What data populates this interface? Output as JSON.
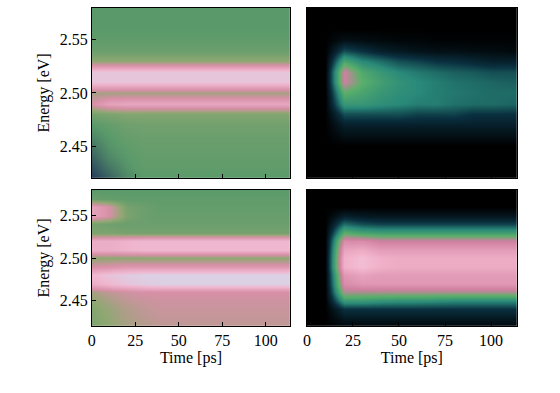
{
  "chart_data": [
    {
      "type": "heatmap",
      "ylabel": "Energy [eV]",
      "tick_labels": "y",
      "grid": false,
      "xlim": [
        0,
        114
      ],
      "ylim": [
        2.42,
        2.58
      ],
      "xticks": [
        0,
        25,
        50,
        75,
        100
      ],
      "yticks": [
        2.45,
        {
          "value": 2.5,
          "label": "2.50"
        },
        2.55
      ],
      "zlim": [
        0,
        1
      ],
      "x": [
        0,
        10,
        20,
        30,
        40,
        50,
        60,
        70,
        80,
        90,
        100,
        110
      ],
      "y": [
        2.42,
        2.43,
        2.44,
        2.45,
        2.46,
        2.47,
        2.48,
        2.49,
        2.5,
        2.51,
        2.52,
        2.53,
        2.54,
        2.55,
        2.56,
        2.57,
        2.58
      ],
      "z": [
        [
          0.05,
          0.15,
          0.25,
          0.3,
          0.3,
          0.3,
          0.3,
          0.3,
          0.3,
          0.3,
          0.3,
          0.3
        ],
        [
          0.1,
          0.2,
          0.28,
          0.32,
          0.32,
          0.32,
          0.32,
          0.32,
          0.32,
          0.32,
          0.32,
          0.32
        ],
        [
          0.15,
          0.25,
          0.3,
          0.33,
          0.33,
          0.33,
          0.33,
          0.33,
          0.33,
          0.33,
          0.33,
          0.33
        ],
        [
          0.2,
          0.28,
          0.32,
          0.34,
          0.34,
          0.34,
          0.34,
          0.34,
          0.34,
          0.34,
          0.34,
          0.34
        ],
        [
          0.25,
          0.3,
          0.34,
          0.35,
          0.35,
          0.35,
          0.35,
          0.35,
          0.35,
          0.35,
          0.35,
          0.35
        ],
        [
          0.3,
          0.33,
          0.36,
          0.37,
          0.37,
          0.37,
          0.37,
          0.37,
          0.37,
          0.37,
          0.37,
          0.37
        ],
        [
          0.38,
          0.4,
          0.42,
          0.42,
          0.42,
          0.42,
          0.42,
          0.42,
          0.42,
          0.42,
          0.42,
          0.42
        ],
        [
          0.6,
          0.7,
          0.72,
          0.72,
          0.72,
          0.72,
          0.72,
          0.72,
          0.72,
          0.72,
          0.72,
          0.72
        ],
        [
          0.5,
          0.5,
          0.5,
          0.5,
          0.5,
          0.5,
          0.5,
          0.5,
          0.5,
          0.5,
          0.5,
          0.5
        ],
        [
          0.85,
          0.85,
          0.85,
          0.85,
          0.85,
          0.85,
          0.85,
          0.85,
          0.85,
          0.85,
          0.85,
          0.85
        ],
        [
          0.85,
          0.85,
          0.85,
          0.85,
          0.85,
          0.85,
          0.85,
          0.85,
          0.85,
          0.85,
          0.85,
          0.85
        ],
        [
          0.45,
          0.45,
          0.45,
          0.45,
          0.45,
          0.45,
          0.45,
          0.45,
          0.45,
          0.45,
          0.45,
          0.45
        ],
        [
          0.35,
          0.35,
          0.35,
          0.35,
          0.35,
          0.35,
          0.35,
          0.35,
          0.35,
          0.35,
          0.35,
          0.35
        ],
        [
          0.32,
          0.32,
          0.32,
          0.32,
          0.32,
          0.32,
          0.32,
          0.32,
          0.32,
          0.32,
          0.32,
          0.32
        ],
        [
          0.3,
          0.3,
          0.3,
          0.3,
          0.3,
          0.3,
          0.3,
          0.3,
          0.3,
          0.3,
          0.3,
          0.3
        ],
        [
          0.3,
          0.3,
          0.3,
          0.3,
          0.3,
          0.3,
          0.3,
          0.3,
          0.3,
          0.3,
          0.3,
          0.3
        ],
        [
          0.3,
          0.3,
          0.3,
          0.3,
          0.3,
          0.3,
          0.3,
          0.3,
          0.3,
          0.3,
          0.3,
          0.3
        ]
      ]
    },
    {
      "type": "heatmap",
      "tick_labels": false,
      "grid": false,
      "xlim": [
        0,
        114
      ],
      "ylim": [
        2.42,
        2.58
      ],
      "xticks": [
        0,
        25,
        50,
        75,
        100
      ],
      "yticks": [
        2.45,
        {
          "value": 2.5,
          "label": "2.50"
        },
        2.55
      ],
      "zlim": [
        0,
        1
      ],
      "x": [
        0,
        10,
        20,
        30,
        40,
        50,
        60,
        70,
        80,
        90,
        100,
        110
      ],
      "y": [
        2.42,
        2.43,
        2.44,
        2.45,
        2.46,
        2.47,
        2.48,
        2.49,
        2.5,
        2.51,
        2.52,
        2.53,
        2.54,
        2.55,
        2.56,
        2.57,
        2.58
      ],
      "z": [
        [
          0,
          0,
          0,
          0,
          0,
          0,
          0,
          0,
          0,
          0,
          0,
          0
        ],
        [
          0,
          0,
          0,
          0,
          0,
          0,
          0,
          0,
          0,
          0,
          0,
          0
        ],
        [
          0,
          0,
          0,
          0,
          0,
          0,
          0,
          0,
          0,
          0,
          0,
          0
        ],
        [
          0,
          0,
          0,
          0,
          0,
          0,
          0,
          0,
          0,
          0,
          0,
          0
        ],
        [
          0,
          0,
          0.05,
          0.05,
          0.05,
          0.05,
          0.05,
          0.05,
          0.05,
          0.05,
          0.05,
          0.05
        ],
        [
          0,
          0,
          0.1,
          0.1,
          0.1,
          0.1,
          0.1,
          0.1,
          0.1,
          0.1,
          0.1,
          0.1
        ],
        [
          0,
          0,
          0.2,
          0.2,
          0.2,
          0.2,
          0.18,
          0.18,
          0.18,
          0.15,
          0.15,
          0.15
        ],
        [
          0,
          0,
          0.35,
          0.35,
          0.32,
          0.3,
          0.28,
          0.28,
          0.26,
          0.25,
          0.25,
          0.24
        ],
        [
          0,
          0,
          0.45,
          0.4,
          0.35,
          0.32,
          0.3,
          0.28,
          0.27,
          0.26,
          0.25,
          0.25
        ],
        [
          0,
          0,
          0.6,
          0.45,
          0.38,
          0.33,
          0.3,
          0.28,
          0.26,
          0.25,
          0.24,
          0.23
        ],
        [
          0,
          0,
          0.6,
          0.42,
          0.35,
          0.3,
          0.27,
          0.25,
          0.23,
          0.22,
          0.2,
          0.2
        ],
        [
          0,
          0,
          0.4,
          0.3,
          0.25,
          0.2,
          0.18,
          0.15,
          0.14,
          0.12,
          0.1,
          0.1
        ],
        [
          0,
          0,
          0.2,
          0.15,
          0.1,
          0.08,
          0.06,
          0.05,
          0.05,
          0.04,
          0.04,
          0.03
        ],
        [
          0,
          0,
          0.05,
          0.04,
          0.03,
          0.02,
          0.02,
          0.01,
          0.01,
          0.01,
          0.01,
          0.01
        ],
        [
          0,
          0,
          0,
          0,
          0,
          0,
          0,
          0,
          0,
          0,
          0,
          0
        ],
        [
          0,
          0,
          0,
          0,
          0,
          0,
          0,
          0,
          0,
          0,
          0,
          0
        ],
        [
          0,
          0,
          0,
          0,
          0,
          0,
          0,
          0,
          0,
          0,
          0,
          0
        ]
      ]
    },
    {
      "type": "heatmap",
      "xlabel": "Time [ps]",
      "ylabel": "Energy [eV]",
      "tick_labels": true,
      "grid": false,
      "xlim": [
        0,
        114
      ],
      "ylim": [
        2.42,
        2.58
      ],
      "xticks": [
        0,
        25,
        50,
        75,
        100
      ],
      "yticks": [
        2.45,
        {
          "value": 2.5,
          "label": "2.50"
        },
        2.55
      ],
      "zlim": [
        0,
        1
      ],
      "x": [
        0,
        10,
        20,
        30,
        40,
        50,
        60,
        70,
        80,
        90,
        100,
        110
      ],
      "y": [
        2.42,
        2.43,
        2.44,
        2.45,
        2.46,
        2.47,
        2.48,
        2.49,
        2.5,
        2.51,
        2.52,
        2.53,
        2.54,
        2.55,
        2.56,
        2.57,
        2.58
      ],
      "z": [
        [
          0.4,
          0.45,
          0.5,
          0.52,
          0.55,
          0.55,
          0.55,
          0.55,
          0.55,
          0.55,
          0.55,
          0.55
        ],
        [
          0.41,
          0.46,
          0.51,
          0.54,
          0.56,
          0.56,
          0.56,
          0.56,
          0.56,
          0.56,
          0.56,
          0.56
        ],
        [
          0.42,
          0.47,
          0.52,
          0.55,
          0.57,
          0.57,
          0.57,
          0.57,
          0.57,
          0.57,
          0.57,
          0.57
        ],
        [
          0.45,
          0.5,
          0.55,
          0.57,
          0.58,
          0.58,
          0.58,
          0.58,
          0.58,
          0.58,
          0.58,
          0.58
        ],
        [
          0.5,
          0.55,
          0.58,
          0.6,
          0.6,
          0.6,
          0.6,
          0.6,
          0.6,
          0.6,
          0.6,
          0.6
        ],
        [
          0.75,
          0.8,
          0.85,
          0.88,
          0.9,
          0.9,
          0.9,
          0.9,
          0.9,
          0.9,
          0.9,
          0.9
        ],
        [
          0.8,
          0.85,
          0.88,
          0.9,
          0.9,
          0.9,
          0.9,
          0.9,
          0.9,
          0.9,
          0.9,
          0.9
        ],
        [
          0.6,
          0.62,
          0.65,
          0.65,
          0.65,
          0.65,
          0.65,
          0.65,
          0.65,
          0.65,
          0.65,
          0.65
        ],
        [
          0.45,
          0.45,
          0.45,
          0.45,
          0.45,
          0.45,
          0.45,
          0.45,
          0.45,
          0.45,
          0.45,
          0.45
        ],
        [
          0.75,
          0.75,
          0.78,
          0.8,
          0.8,
          0.8,
          0.8,
          0.8,
          0.8,
          0.8,
          0.8,
          0.8
        ],
        [
          0.75,
          0.75,
          0.78,
          0.8,
          0.8,
          0.8,
          0.8,
          0.8,
          0.8,
          0.8,
          0.8,
          0.8
        ],
        [
          0.4,
          0.4,
          0.38,
          0.38,
          0.38,
          0.38,
          0.38,
          0.38,
          0.38,
          0.38,
          0.38,
          0.38
        ],
        [
          0.38,
          0.36,
          0.35,
          0.35,
          0.35,
          0.35,
          0.35,
          0.35,
          0.35,
          0.35,
          0.35,
          0.35
        ],
        [
          0.7,
          0.6,
          0.4,
          0.35,
          0.34,
          0.34,
          0.34,
          0.34,
          0.34,
          0.34,
          0.34,
          0.34
        ],
        [
          0.7,
          0.6,
          0.38,
          0.35,
          0.33,
          0.33,
          0.33,
          0.33,
          0.33,
          0.33,
          0.33,
          0.33
        ],
        [
          0.35,
          0.33,
          0.32,
          0.32,
          0.32,
          0.32,
          0.32,
          0.32,
          0.32,
          0.32,
          0.32,
          0.32
        ],
        [
          0.3,
          0.3,
          0.3,
          0.3,
          0.3,
          0.3,
          0.3,
          0.3,
          0.3,
          0.3,
          0.3,
          0.3
        ]
      ]
    },
    {
      "type": "heatmap",
      "xlabel": "Time [ps]",
      "tick_labels": "x",
      "grid": false,
      "xlim": [
        0,
        114
      ],
      "ylim": [
        2.42,
        2.58
      ],
      "xticks": [
        0,
        25,
        50,
        75,
        100
      ],
      "yticks": [
        2.45,
        {
          "value": 2.5,
          "label": "2.50"
        },
        2.55
      ],
      "zlim": [
        0,
        1
      ],
      "x": [
        0,
        10,
        20,
        30,
        40,
        50,
        60,
        70,
        80,
        90,
        100,
        110
      ],
      "y": [
        2.42,
        2.43,
        2.44,
        2.45,
        2.46,
        2.47,
        2.48,
        2.49,
        2.5,
        2.51,
        2.52,
        2.53,
        2.54,
        2.55,
        2.56,
        2.57,
        2.58
      ],
      "z": [
        [
          0,
          0,
          0.03,
          0.03,
          0.03,
          0.03,
          0.03,
          0.03,
          0.03,
          0.03,
          0.03,
          0.03
        ],
        [
          0,
          0,
          0.08,
          0.08,
          0.08,
          0.08,
          0.08,
          0.08,
          0.08,
          0.08,
          0.08,
          0.08
        ],
        [
          0,
          0,
          0.15,
          0.15,
          0.15,
          0.15,
          0.15,
          0.15,
          0.15,
          0.15,
          0.15,
          0.15
        ],
        [
          0,
          0,
          0.35,
          0.35,
          0.33,
          0.32,
          0.32,
          0.31,
          0.3,
          0.3,
          0.3,
          0.3
        ],
        [
          0,
          0,
          0.55,
          0.55,
          0.55,
          0.55,
          0.55,
          0.55,
          0.55,
          0.55,
          0.55,
          0.55
        ],
        [
          0,
          0,
          0.65,
          0.7,
          0.7,
          0.7,
          0.7,
          0.7,
          0.7,
          0.7,
          0.7,
          0.7
        ],
        [
          0,
          0,
          0.7,
          0.75,
          0.72,
          0.72,
          0.72,
          0.72,
          0.72,
          0.72,
          0.72,
          0.72
        ],
        [
          0,
          0,
          0.8,
          0.85,
          0.8,
          0.78,
          0.78,
          0.78,
          0.78,
          0.78,
          0.78,
          0.78
        ],
        [
          0,
          0,
          0.8,
          0.85,
          0.8,
          0.78,
          0.78,
          0.78,
          0.78,
          0.78,
          0.78,
          0.78
        ],
        [
          0,
          0,
          0.75,
          0.78,
          0.72,
          0.72,
          0.72,
          0.72,
          0.72,
          0.72,
          0.72,
          0.72
        ],
        [
          0,
          0,
          0.65,
          0.65,
          0.6,
          0.6,
          0.6,
          0.6,
          0.6,
          0.6,
          0.6,
          0.6
        ],
        [
          0,
          0,
          0.45,
          0.4,
          0.38,
          0.38,
          0.38,
          0.38,
          0.38,
          0.38,
          0.38,
          0.38
        ],
        [
          0,
          0,
          0.25,
          0.2,
          0.18,
          0.18,
          0.18,
          0.18,
          0.18,
          0.18,
          0.18,
          0.18
        ],
        [
          0,
          0,
          0.1,
          0.08,
          0.07,
          0.07,
          0.07,
          0.07,
          0.07,
          0.07,
          0.07,
          0.07
        ],
        [
          0,
          0,
          0,
          0,
          0,
          0,
          0,
          0,
          0,
          0,
          0,
          0
        ],
        [
          0,
          0,
          0,
          0,
          0,
          0,
          0,
          0,
          0,
          0,
          0,
          0
        ],
        [
          0,
          0,
          0,
          0,
          0,
          0,
          0,
          0,
          0,
          0,
          0,
          0
        ]
      ]
    }
  ]
}
